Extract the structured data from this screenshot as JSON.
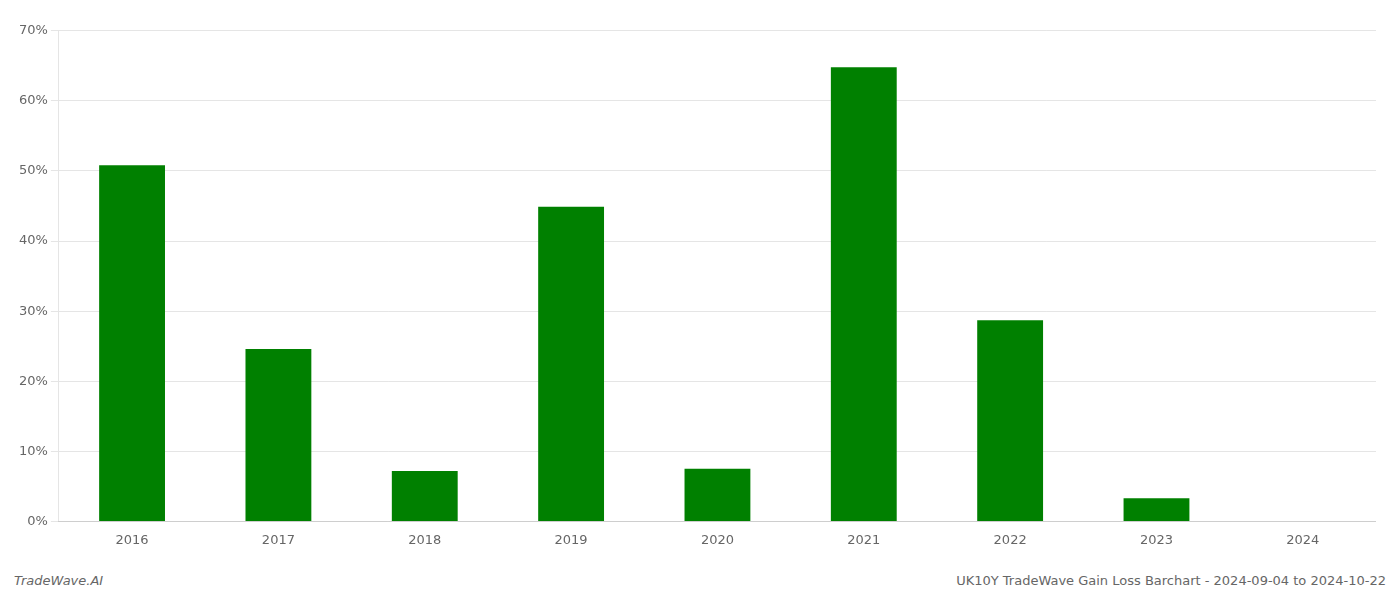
{
  "chart_data": {
    "type": "bar",
    "categories": [
      "2016",
      "2017",
      "2018",
      "2019",
      "2020",
      "2021",
      "2022",
      "2023",
      "2024"
    ],
    "values": [
      0.508,
      0.246,
      0.072,
      0.449,
      0.075,
      0.648,
      0.287,
      0.033,
      0.0
    ],
    "color": "#008000",
    "ylim": [
      0,
      0.7
    ],
    "yticks": [
      {
        "value": 0,
        "label": "0%"
      },
      {
        "value": 0.1,
        "label": "10%"
      },
      {
        "value": 0.2,
        "label": "20%"
      },
      {
        "value": 0.3,
        "label": "30%"
      },
      {
        "value": 0.4,
        "label": "40%"
      },
      {
        "value": 0.5,
        "label": "50%"
      },
      {
        "value": 0.6,
        "label": "60%"
      },
      {
        "value": 0.7,
        "label": "70%"
      }
    ],
    "grid": true,
    "annotations": [
      "TradeWave.AI",
      "UK10Y TradeWave Gain Loss Barchart - 2024-09-04 to 2024-10-22"
    ]
  }
}
